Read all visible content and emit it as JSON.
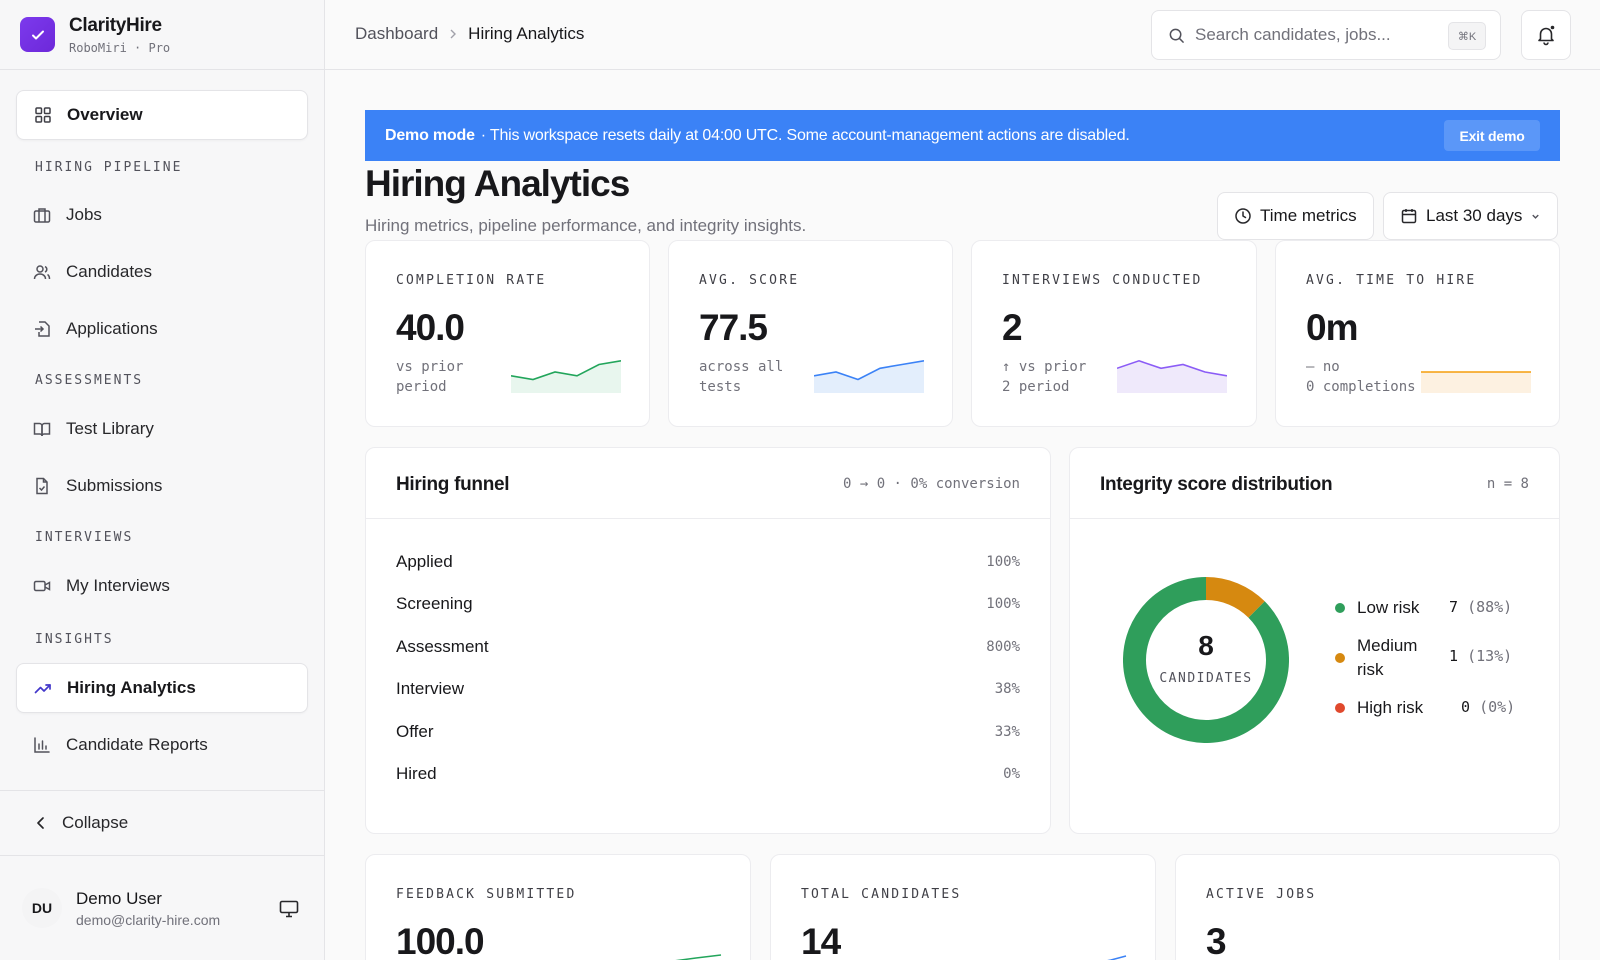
{
  "brand": {
    "name": "ClarityHire",
    "sub": "RoboMiri · Pro"
  },
  "sidebar": {
    "overview": "Overview",
    "sections": {
      "hiring_pipeline": "HIRING PIPELINE",
      "assessments": "ASSESSMENTS",
      "interviews": "INTERVIEWS",
      "insights": "INSIGHTS"
    },
    "items": {
      "jobs": "Jobs",
      "candidates": "Candidates",
      "applications": "Applications",
      "test_library": "Test Library",
      "submissions": "Submissions",
      "my_interviews": "My Interviews",
      "hiring_analytics": "Hiring Analytics",
      "candidate_reports": "Candidate Reports"
    },
    "collapse": "Collapse",
    "user": {
      "initials": "DU",
      "name": "Demo User",
      "email": "demo@clarity-hire.com"
    }
  },
  "topbar": {
    "breadcrumb": [
      "Dashboard",
      "Hiring Analytics"
    ],
    "search_placeholder": "Search candidates, jobs...",
    "search_shortcut": "⌘K"
  },
  "demo_banner": {
    "label": "Demo mode",
    "message": "· This workspace resets daily at 04:00 UTC. Some account-management actions are disabled.",
    "exit_label": "Exit demo"
  },
  "page": {
    "title": "Hiring Analytics",
    "subtitle": "Hiring metrics, pipeline performance, and integrity insights.",
    "time_metrics_label": "Time metrics",
    "range_label": "Last 30 days"
  },
  "stats": [
    {
      "label": "COMPLETION RATE",
      "value": "40.0",
      "note1": "vs prior",
      "note2": "period",
      "color": "#22a55b",
      "fill": "#e8f6ee",
      "trend": [
        3,
        2,
        4,
        3,
        6,
        7
      ]
    },
    {
      "label": "AVG. SCORE",
      "value": "77.5",
      "note1": "across all",
      "note2": "tests",
      "color": "#3b82f6",
      "fill": "#e3eefc",
      "trend": [
        3,
        4,
        2,
        5,
        6,
        7
      ]
    },
    {
      "label": "INTERVIEWS CONDUCTED",
      "value": "2",
      "note1": "↑  vs prior",
      "note2": "2  period",
      "color": "#8b5cf6",
      "fill": "#efe9fb",
      "trend": [
        5,
        7,
        5,
        6,
        4,
        3
      ]
    },
    {
      "label": "AVG. TIME TO HIRE",
      "value": "0m",
      "note1": "— no",
      "note2": "0 completions",
      "color": "#f59e0b",
      "fill": "#fdf1e1",
      "trend": [
        4,
        4,
        4,
        4,
        4,
        4
      ]
    }
  ],
  "funnel": {
    "title": "Hiring funnel",
    "meta": "0 → 0 · 0% conversion",
    "stages": [
      {
        "name": "Applied",
        "pct": "100%"
      },
      {
        "name": "Screening",
        "pct": "100%"
      },
      {
        "name": "Assessment",
        "pct": "800%"
      },
      {
        "name": "Interview",
        "pct": "38%"
      },
      {
        "name": "Offer",
        "pct": "33%"
      },
      {
        "name": "Hired",
        "pct": "0%"
      }
    ]
  },
  "integrity": {
    "title": "Integrity score distribution",
    "meta": "n = 8",
    "total": "8",
    "total_label": "CANDIDATES",
    "legend": [
      {
        "label": "Low risk",
        "count": "7",
        "pct": "(88%)",
        "color": "#2f9e5b",
        "value": 7
      },
      {
        "label": "Medium risk",
        "count": "1",
        "pct": "(13%)",
        "color": "#d68910",
        "value": 1
      },
      {
        "label": "High risk",
        "count": "0",
        "pct": "(0%)",
        "color": "#e0492d",
        "value": 0
      }
    ]
  },
  "bottom_stats": [
    {
      "label": "FEEDBACK SUBMITTED",
      "value": "100.0",
      "color": "#22a55b"
    },
    {
      "label": "TOTAL CANDIDATES",
      "value": "14",
      "color": "#3b82f6"
    },
    {
      "label": "ACTIVE JOBS",
      "value": "3",
      "color": "#8b5cf6"
    }
  ]
}
